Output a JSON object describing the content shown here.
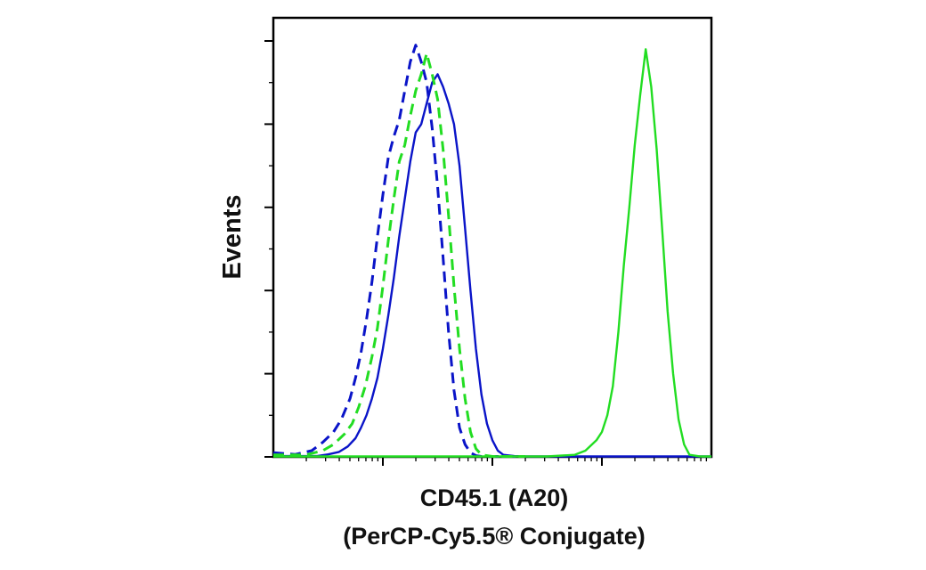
{
  "chart_data": {
    "type": "line",
    "chart_kind": "flow cytometry histogram overlay",
    "xlabel_line1": "CD45.1 (A20)",
    "xlabel_line2": "(PerCP-Cy5.5® Conjugate)",
    "ylabel": "Events",
    "x_scale": "log",
    "x_ticks_printed": false,
    "y_ticks_printed": false,
    "ylim": [
      0,
      100
    ],
    "grid": false,
    "legend": "none",
    "series": [
      {
        "color": "#0a14c8",
        "dash": "solid",
        "x": [
          0.0,
          0.4,
          0.5,
          0.6,
          0.68,
          0.75,
          0.8,
          0.85,
          0.9,
          0.95,
          1.0,
          1.05,
          1.1,
          1.15,
          1.2,
          1.25,
          1.3,
          1.35,
          1.4,
          1.45,
          1.5,
          1.55,
          1.6,
          1.65,
          1.7,
          1.75,
          1.8,
          1.85,
          1.9,
          1.95,
          2.0,
          2.05,
          2.1,
          2.2,
          2.3,
          3.0,
          4.0
        ],
        "y": [
          0.2,
          0.2,
          0.6,
          1.2,
          2.5,
          4.5,
          7,
          10,
          14,
          19,
          26,
          34,
          43,
          53,
          62,
          71,
          78,
          80,
          85,
          90,
          92,
          89,
          85,
          80,
          70,
          55,
          40,
          26,
          15,
          8,
          4,
          1.5,
          0.5,
          0.2,
          0.1,
          0.1,
          0.1
        ]
      },
      {
        "color": "#0a14c8",
        "dash": "dashed",
        "x": [
          0.0,
          0.2,
          0.35,
          0.45,
          0.55,
          0.62,
          0.7,
          0.75,
          0.8,
          0.85,
          0.9,
          0.95,
          1.0,
          1.05,
          1.1,
          1.15,
          1.2,
          1.25,
          1.3,
          1.35,
          1.4,
          1.45,
          1.5,
          1.55,
          1.6,
          1.65,
          1.7,
          1.75,
          1.8,
          1.85,
          1.9,
          2.0,
          2.1,
          2.3
        ],
        "y": [
          1,
          0.6,
          1.5,
          3.5,
          6,
          9,
          14,
          19,
          25,
          33,
          42,
          53,
          63,
          72,
          77,
          81,
          88,
          95,
          99,
          95,
          90,
          79,
          65,
          48,
          30,
          16,
          7,
          3,
          1,
          0.3,
          0.1,
          0.1,
          0.1,
          0.1
        ]
      },
      {
        "color": "#22dd22",
        "dash": "dashed",
        "x": [
          0.0,
          0.3,
          0.45,
          0.55,
          0.65,
          0.72,
          0.78,
          0.84,
          0.9,
          0.95,
          1.0,
          1.05,
          1.1,
          1.15,
          1.2,
          1.25,
          1.3,
          1.35,
          1.4,
          1.45,
          1.5,
          1.55,
          1.6,
          1.65,
          1.7,
          1.75,
          1.8,
          1.85,
          1.9,
          2.0,
          2.1,
          2.3
        ],
        "y": [
          0.5,
          0.5,
          1.5,
          3,
          5.5,
          8,
          12,
          17,
          24,
          31,
          41,
          52,
          62,
          71,
          75,
          82,
          88,
          92,
          97,
          92,
          86,
          74,
          58,
          41,
          26,
          14,
          6,
          2,
          0.5,
          0.1,
          0.1,
          0.1
        ]
      },
      {
        "color": "#22dd22",
        "dash": "solid",
        "x": [
          0.0,
          2.5,
          2.75,
          2.85,
          2.95,
          3.0,
          3.05,
          3.1,
          3.15,
          3.2,
          3.25,
          3.3,
          3.35,
          3.4,
          3.45,
          3.5,
          3.55,
          3.6,
          3.65,
          3.7,
          3.75,
          3.8,
          3.9,
          4.0
        ],
        "y": [
          0.1,
          0.1,
          0.5,
          1.5,
          4,
          6,
          10,
          17,
          30,
          46,
          60,
          75,
          87,
          98,
          89,
          74,
          55,
          35,
          20,
          9,
          3,
          0.5,
          0.1,
          0.1
        ]
      }
    ]
  }
}
